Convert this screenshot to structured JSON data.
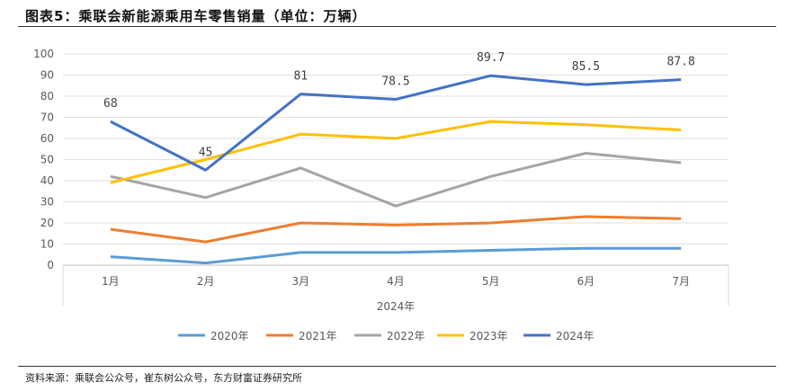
{
  "title": "图表5：乘联会新能源乘用车零售销量（单位：万辆）",
  "source": "资料来源：乘联会公众号，崔东树公众号，东方财富证券研究所",
  "chart_data": {
    "type": "line",
    "categories": [
      "1月",
      "2月",
      "3月",
      "4月",
      "5月",
      "6月",
      "7月"
    ],
    "xlabel": "2024年",
    "ylim": [
      0,
      100
    ],
    "yticks": [
      0,
      10,
      20,
      30,
      40,
      50,
      60,
      70,
      80,
      90,
      100
    ],
    "grid": true,
    "legend": "bottom",
    "series": [
      {
        "name": "2020年",
        "color": "#5B9BD5",
        "values": [
          4,
          1,
          6,
          6,
          7,
          8,
          8
        ]
      },
      {
        "name": "2021年",
        "color": "#ED7D31",
        "values": [
          17,
          11,
          20,
          19,
          20,
          23,
          22
        ]
      },
      {
        "name": "2022年",
        "color": "#A5A5A5",
        "values": [
          42,
          32,
          46,
          28,
          42,
          53,
          48.5
        ]
      },
      {
        "name": "2023年",
        "color": "#FFC000",
        "values": [
          39,
          50,
          62,
          60,
          68,
          66.5,
          64
        ]
      },
      {
        "name": "2024年",
        "color": "#4472C4",
        "values": [
          68,
          45,
          81,
          78.5,
          89.7,
          85.5,
          87.8
        ],
        "labels": [
          "68",
          "45",
          "81",
          "78.5",
          "89.7",
          "85.5",
          "87.8"
        ]
      }
    ]
  }
}
